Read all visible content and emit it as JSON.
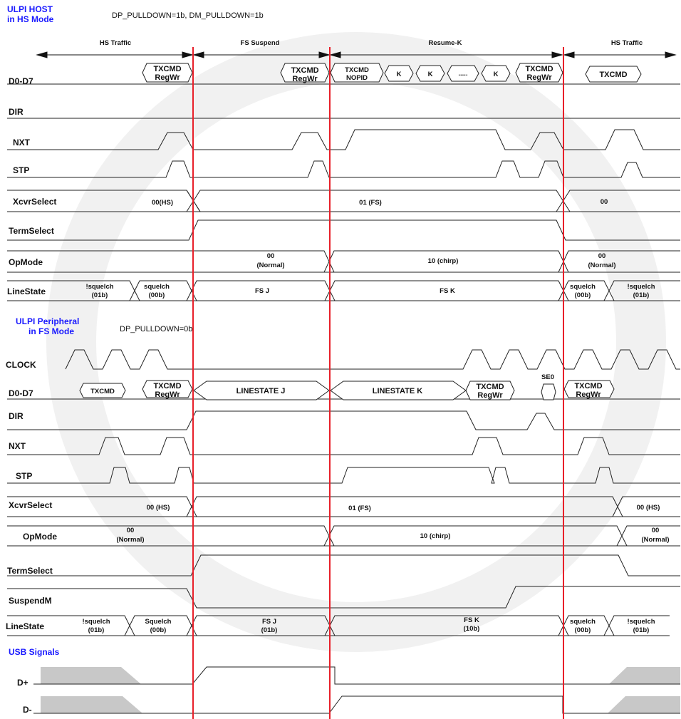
{
  "host": {
    "title1": "ULPI HOST",
    "title2": "in HS Mode",
    "note": "DP_PULLDOWN=1b, DM_PULLDOWN=1b",
    "phases": [
      "HS Traffic",
      "FS Suspend",
      "Resume-K",
      "HS Traffic"
    ],
    "signals": {
      "d0d7": "D0-D7",
      "dir": "DIR",
      "nxt": "NXT",
      "stp": "STP",
      "xcvr": "XcvrSelect",
      "term": "TermSelect",
      "opmode": "OpMode",
      "linestate": "LineState"
    },
    "d0d7": {
      "txcmd": "TXCMD",
      "regwr": "RegWr",
      "nopid": "NOPID",
      "k": "K",
      "dots": "....."
    },
    "xcvr": [
      "00(HS)",
      "01 (FS)",
      "00"
    ],
    "opmode": {
      "a1": "00",
      "a2": "(Normal)",
      "b": "10 (chirp)",
      "c1": "00",
      "c2": "(Normal)"
    },
    "linestate": {
      "s1a": "!squelch",
      "s1b": "(01b)",
      "s2a": "squelch",
      "s2b": "(00b)",
      "fsj": "FS J",
      "fsk": "FS K",
      "s3a": "squelch",
      "s3b": "(00b)",
      "s4a": "!squelch",
      "s4b": "(01b)"
    }
  },
  "periph": {
    "title1": "ULPI Peripheral",
    "title2": "in FS Mode",
    "note": "DP_PULLDOWN=0b",
    "signals": {
      "clock": "CLOCK",
      "d0d7": "D0-D7",
      "dir": "DIR",
      "nxt": "NXT",
      "stp": "STP",
      "xcvr": "XcvrSelect",
      "opmode": "OpMode",
      "term": "TermSelect",
      "suspendm": "SuspendM",
      "linestate": "LineState"
    },
    "d0d7": {
      "txcmd": "TXCMD",
      "regwr": "RegWr",
      "lsj": "LINESTATE J",
      "lsk": "LINESTATE K",
      "se0": "SE0"
    },
    "xcvr": [
      "00 (HS)",
      "01 (FS)",
      "00 (HS)"
    ],
    "opmode": {
      "a1": "00",
      "a2": "(Normal)",
      "b": "10 (chirp)",
      "c1": "00",
      "c2": "(Normal)"
    },
    "linestate": {
      "s1a": "!squelch",
      "s1b": "(01b)",
      "s2a": "Squelch",
      "s2b": "(00b)",
      "fsj1": "FS J",
      "fsj2": "(01b)",
      "fsk1": "FS K",
      "fsk2": "(10b)",
      "s3a": "squelch",
      "s3b": "(00b)",
      "s4a": "!squelch",
      "s4b": "(01b)"
    }
  },
  "usb": {
    "title": "USB Signals",
    "dplus": "D+",
    "dminus": "D-"
  }
}
